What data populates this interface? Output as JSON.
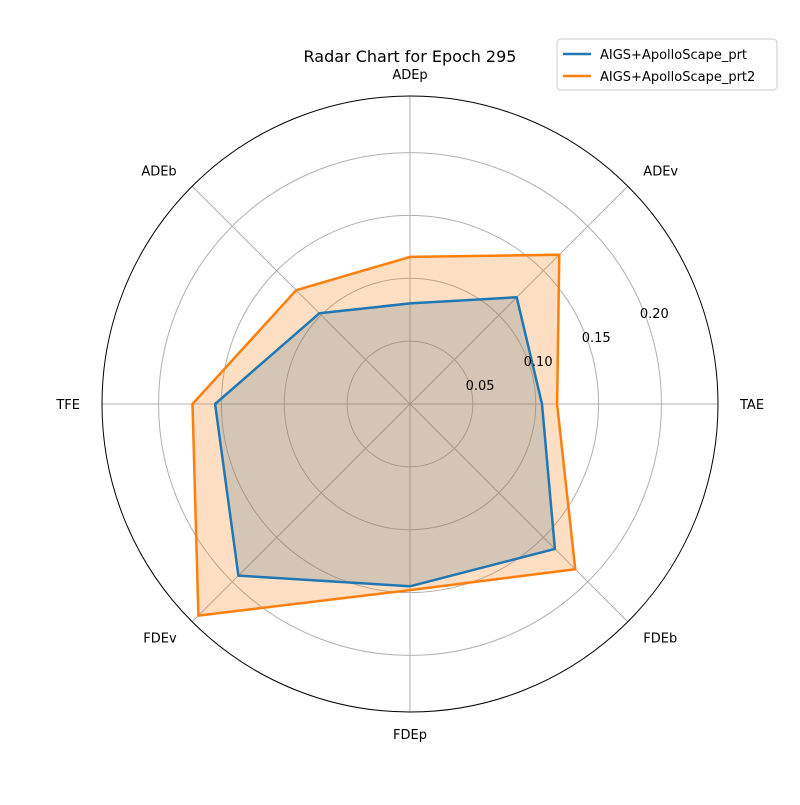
{
  "chart_data": {
    "type": "radar",
    "title": "Radar Chart for Epoch 295",
    "axes": [
      "TAE",
      "ADEv",
      "ADEp",
      "ADEb",
      "TFE",
      "FDEv",
      "FDEp",
      "FDEb"
    ],
    "rlim": [
      0,
      0.245
    ],
    "r_ticks": [
      0.05,
      0.1,
      0.15,
      0.2
    ],
    "r_tick_labels": [
      "0.05",
      "0.10",
      "0.15",
      "0.20"
    ],
    "grid": true,
    "legend_position": "top-right",
    "series": [
      {
        "name": "AIGS+ApolloScape_prt",
        "color": "#1f77b4",
        "values": [
          0.105,
          0.12,
          0.08,
          0.102,
          0.155,
          0.193,
          0.145,
          0.163
        ]
      },
      {
        "name": "AIGS+ApolloScape_prt2",
        "color": "#ff7f0e",
        "values": [
          0.117,
          0.168,
          0.117,
          0.128,
          0.173,
          0.238,
          0.148,
          0.186
        ]
      }
    ]
  }
}
